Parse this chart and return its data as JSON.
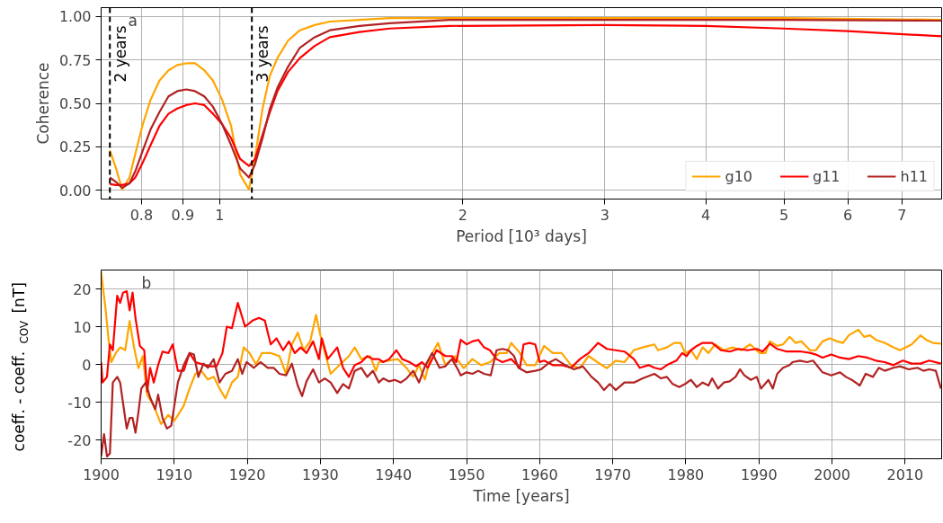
{
  "chart_data": [
    {
      "type": "line",
      "xlabel": "Period [10³ days]",
      "ylabel": "Coherence",
      "log": "x",
      "grid": true,
      "legend": "bottom right",
      "line_style": "solid",
      "xlim": [
        0.713,
        7.84
      ],
      "xticks": [
        0.8,
        0.9,
        1,
        2,
        3,
        4,
        5,
        6,
        7
      ],
      "ylim": [
        -0.05,
        1.05
      ],
      "yticks": [
        {
          "value": 0,
          "label": "0.00"
        },
        {
          "value": 0.25,
          "label": "0.25"
        },
        {
          "value": 0.5,
          "label": "0.50"
        },
        {
          "value": 0.75,
          "label": "0.75"
        },
        {
          "value": 1,
          "label": "1.00"
        }
      ],
      "ref_lines": [
        {
          "axis": "x",
          "value": 0.731,
          "label": "2 years",
          "color": "#000000",
          "line_style": "dashed"
        },
        {
          "axis": "x",
          "value": 1.096,
          "label": "3 years",
          "color": "#000000",
          "line_style": "dashed"
        }
      ],
      "annotations": [
        "a"
      ],
      "series": [
        {
          "name": "g10",
          "color": "#ffa500",
          "x": [
            0.731,
            0.744,
            0.757,
            0.773,
            0.786,
            0.803,
            0.821,
            0.842,
            0.864,
            0.886,
            0.909,
            0.932,
            0.957,
            0.981,
            1.007,
            1.033,
            1.06,
            1.087,
            1.106,
            1.13,
            1.154,
            1.179,
            1.215,
            1.257,
            1.311,
            1.369,
            1.49,
            1.623,
            1.925,
            3,
            5,
            7.84
          ],
          "values": [
            0.23,
            0.126,
            0.005,
            0.074,
            0.21,
            0.38,
            0.52,
            0.63,
            0.69,
            0.72,
            0.73,
            0.73,
            0.69,
            0.63,
            0.52,
            0.37,
            0.09,
            0.005,
            0.19,
            0.47,
            0.66,
            0.76,
            0.86,
            0.92,
            0.95,
            0.97,
            0.98,
            0.99,
            0.99,
            0.99,
            0.99,
            0.98
          ]
        },
        {
          "name": "g11",
          "color": "#ff0000",
          "x": [
            0.731,
            0.744,
            0.757,
            0.773,
            0.786,
            0.803,
            0.821,
            0.842,
            0.864,
            0.886,
            0.909,
            0.932,
            0.957,
            0.981,
            1.007,
            1.033,
            1.06,
            1.087,
            1.106,
            1.13,
            1.154,
            1.179,
            1.215,
            1.257,
            1.311,
            1.369,
            1.49,
            1.623,
            1.925,
            3,
            4,
            5,
            6,
            7.84
          ],
          "values": [
            0.036,
            0.031,
            0.031,
            0.04,
            0.074,
            0.16,
            0.26,
            0.37,
            0.44,
            0.47,
            0.49,
            0.5,
            0.49,
            0.44,
            0.38,
            0.3,
            0.18,
            0.14,
            0.18,
            0.32,
            0.45,
            0.57,
            0.68,
            0.76,
            0.83,
            0.88,
            0.91,
            0.93,
            0.945,
            0.95,
            0.945,
            0.93,
            0.915,
            0.885
          ]
        },
        {
          "name": "h11",
          "color": "#b22222",
          "x": [
            0.731,
            0.744,
            0.757,
            0.773,
            0.786,
            0.803,
            0.821,
            0.842,
            0.864,
            0.886,
            0.909,
            0.932,
            0.957,
            0.981,
            1.007,
            1.033,
            1.06,
            1.087,
            1.106,
            1.13,
            1.154,
            1.179,
            1.215,
            1.257,
            1.311,
            1.369,
            1.49,
            1.623,
            1.925,
            3,
            5,
            7.84
          ],
          "values": [
            0.074,
            0.048,
            0.014,
            0.04,
            0.11,
            0.23,
            0.35,
            0.45,
            0.54,
            0.57,
            0.58,
            0.57,
            0.54,
            0.48,
            0.38,
            0.26,
            0.126,
            0.074,
            0.15,
            0.3,
            0.47,
            0.59,
            0.71,
            0.82,
            0.88,
            0.92,
            0.945,
            0.96,
            0.98,
            0.98,
            0.98,
            0.975
          ]
        }
      ]
    },
    {
      "type": "line",
      "xlabel": "Time [years]",
      "ylabel": "coeff. - coeff.$_{COV}$ [nT]",
      "grid": true,
      "line_style": "solid",
      "xlim": [
        1900,
        2015
      ],
      "xticks": [
        1900,
        1910,
        1920,
        1930,
        1940,
        1950,
        1960,
        1970,
        1980,
        1990,
        2000,
        2010
      ],
      "ylim": [
        -25,
        25
      ],
      "yticks": [
        -20,
        -10,
        0,
        10,
        20
      ],
      "annotations": [
        "b"
      ],
      "series": [
        {
          "color": "#ffa500",
          "x": [
            1900,
            1900.6,
            1901,
            1901.4,
            1902,
            1902.6,
            1903.3,
            1903.9,
            1904.5,
            1905.1,
            1905.7,
            1906.3,
            1907.2,
            1908.2,
            1909.2,
            1910,
            1911.3,
            1912.1,
            1912.9,
            1913.7,
            1914.6,
            1915.4,
            1916.2,
            1917,
            1917.9,
            1918.7,
            1919.5,
            1920.3,
            1921.2,
            1922,
            1923.2,
            1924.4,
            1925.3,
            1926.1,
            1926.9,
            1927.7,
            1928.6,
            1929.4,
            1930,
            1931.4,
            1932.7,
            1933.9,
            1934.7,
            1935.6,
            1936.8,
            1937.6,
            1938,
            1940.6,
            1941.8,
            1942.7,
            1943.5,
            1944.3,
            1945.1,
            1946.1,
            1947.1,
            1948.4,
            1949.6,
            1950.8,
            1952,
            1953.2,
            1954.5,
            1955.5,
            1956.1,
            1957.3,
            1958.2,
            1959.4,
            1960.6,
            1961.8,
            1963,
            1964.3,
            1965.5,
            1966.7,
            1967.9,
            1969.2,
            1970.4,
            1971.6,
            1972.9,
            1974.1,
            1975.7,
            1976.2,
            1977.4,
            1978.4,
            1979.3,
            1979.9,
            1980.7,
            1981.5,
            1982.3,
            1983.1,
            1984,
            1985.2,
            1986.4,
            1987.6,
            1988.8,
            1990.1,
            1990.9,
            1991.5,
            1992.5,
            1993.3,
            1994.2,
            1995,
            1995.8,
            1997,
            1997.8,
            1998.7,
            1999.7,
            2000.7,
            2001.5,
            2002.3,
            2003.6,
            2004.4,
            2005.2,
            2006,
            2007.2,
            2008.4,
            2009.3,
            2010.1,
            2010.9,
            2012.1,
            2012.9,
            2013.8,
            2014.9
          ],
          "values": [
            24.5,
            14.8,
            6.8,
            0.6,
            3,
            4.5,
            3.8,
            11.5,
            4.5,
            -1,
            2.2,
            -8,
            -11,
            -15.8,
            -13.4,
            -15,
            -11,
            -6.4,
            -2.5,
            -1.7,
            -4,
            -3.3,
            -6.4,
            -9,
            -4.8,
            -3.3,
            4.5,
            3,
            0,
            3,
            3,
            2.2,
            -2.5,
            5.3,
            8.4,
            3.8,
            6,
            13.1,
            7.7,
            -2.5,
            0,
            2.2,
            4.5,
            1.4,
            2.2,
            -1.7,
            0.6,
            1.4,
            -1,
            -3.3,
            -0.2,
            -4,
            2.2,
            5.7,
            -0.2,
            2.2,
            -1,
            1.4,
            -0.2,
            0.6,
            3,
            3,
            5.7,
            3,
            -0.2,
            -0.2,
            4.9,
            3,
            3,
            -0.2,
            -1,
            2.2,
            0.6,
            -1,
            1,
            0.6,
            3.8,
            4.5,
            5.3,
            3.75,
            4.5,
            5.7,
            5.7,
            3,
            3.75,
            1.4,
            4.5,
            3,
            5.3,
            3.75,
            4.5,
            3.75,
            5.3,
            3,
            3,
            6.1,
            4.9,
            5.3,
            7.3,
            5.7,
            6.1,
            3.75,
            3.75,
            6.1,
            6.9,
            6.1,
            5.7,
            7.7,
            9.2,
            7.3,
            7.7,
            6.5,
            5.7,
            4.5,
            3.75,
            4.5,
            5.3,
            7.7,
            6.5,
            5.7,
            5.5
          ]
        },
        {
          "color": "#ff0000",
          "x": [
            1900,
            1900.2,
            1900.8,
            1901.2,
            1901.6,
            1902.2,
            1902.6,
            1903,
            1903.5,
            1903.9,
            1904.3,
            1904.7,
            1905.3,
            1905.9,
            1906.3,
            1906.7,
            1907.2,
            1907.8,
            1908.4,
            1909.2,
            1909.8,
            1910.5,
            1911.3,
            1912.1,
            1912.9,
            1914.2,
            1915,
            1915.8,
            1916.6,
            1917.2,
            1917.9,
            1918.7,
            1919.7,
            1920.7,
            1921.6,
            1922.4,
            1923.2,
            1924,
            1924.9,
            1925.7,
            1926.5,
            1927.3,
            1928.1,
            1929,
            1929.8,
            1930.2,
            1931,
            1932.3,
            1933.1,
            1933.9,
            1934.7,
            1935.6,
            1936.4,
            1937.2,
            1938,
            1938.6,
            1939.4,
            1940.4,
            1941.2,
            1942.2,
            1943.1,
            1943.9,
            1944.7,
            1945.9,
            1947.1,
            1948,
            1948.6,
            1949.2,
            1950,
            1950.8,
            1951.6,
            1952.4,
            1953.2,
            1954.1,
            1954.9,
            1956.1,
            1957.3,
            1957.8,
            1958.6,
            1959.4,
            1960,
            1960.6,
            1961.8,
            1963.1,
            1964.3,
            1965.5,
            1966.7,
            1968,
            1969.2,
            1970.4,
            1971.6,
            1972.9,
            1973.7,
            1974.9,
            1975.7,
            1976.6,
            1977.4,
            1978.7,
            1979.5,
            1980.1,
            1980.7,
            1981.5,
            1982.3,
            1983.6,
            1984.8,
            1986,
            1987.2,
            1988.4,
            1989.7,
            1990.5,
            1991.5,
            1992.5,
            1993.8,
            1994.6,
            1995.8,
            1997.1,
            1997.8,
            1998.7,
            1999.9,
            2001.1,
            2002.3,
            2003.6,
            2004.8,
            2006,
            2007.2,
            2008.4,
            2009.7,
            2010.9,
            2012.1,
            2013.3,
            2014.9
          ],
          "values": [
            0.6,
            -4.8,
            -3.3,
            5.3,
            3.75,
            18.2,
            16.3,
            19,
            19.4,
            14.3,
            19,
            12.3,
            4.9,
            3.75,
            -7.2,
            -0.9,
            -4.8,
            -0.2,
            3.4,
            3,
            5.3,
            -1.7,
            -1.7,
            3,
            0.6,
            -0.2,
            -0.5,
            -0.5,
            3,
            10,
            9.6,
            16.3,
            10,
            11.6,
            12.3,
            11.6,
            5.3,
            6.9,
            3.75,
            6.1,
            3,
            4.5,
            3,
            6.1,
            1.4,
            6.9,
            1.4,
            4.5,
            -0.9,
            -3.3,
            -0.2,
            0.6,
            2.2,
            1.4,
            1.4,
            0.6,
            1.4,
            3.75,
            1.4,
            0.6,
            -0.5,
            0.6,
            -0.9,
            3.75,
            2.2,
            2.2,
            0.6,
            6.5,
            5.3,
            6.1,
            6.5,
            4.5,
            3.75,
            1.4,
            0.6,
            1.4,
            -0.9,
            5.3,
            5.7,
            5.3,
            0.6,
            1,
            -0.2,
            -0.2,
            -0.9,
            1.4,
            3,
            5.7,
            4.1,
            3.75,
            3.4,
            1.4,
            -0.9,
            -0.2,
            -0.9,
            -1.3,
            -0.2,
            1,
            3,
            2.2,
            3.75,
            4.9,
            5.7,
            5.7,
            3.75,
            3.4,
            4.1,
            3.75,
            4.1,
            3.4,
            5.5,
            4.1,
            3.4,
            3.4,
            3.4,
            3,
            2.6,
            1.8,
            2.6,
            1.8,
            1.4,
            2.2,
            1.8,
            1,
            0.6,
            -0.2,
            1,
            0.2,
            0.2,
            1,
            0.2
          ]
        },
        {
          "color": "#b22222",
          "x": [
            1900,
            1900.4,
            1900.8,
            1901.2,
            1901.6,
            1902.2,
            1902.6,
            1903,
            1903.5,
            1903.9,
            1904.3,
            1904.7,
            1905.1,
            1905.5,
            1906.1,
            1906.7,
            1907.4,
            1907.8,
            1908.4,
            1909,
            1909.6,
            1910.5,
            1911.3,
            1912.1,
            1912.7,
            1913.3,
            1914,
            1914.6,
            1915.4,
            1916.2,
            1917,
            1917.9,
            1918.7,
            1919.3,
            1919.9,
            1920.9,
            1921.8,
            1922.8,
            1923.6,
            1924.4,
            1925.3,
            1926.1,
            1926.9,
            1927.5,
            1928.1,
            1929,
            1929.8,
            1930.6,
            1931.4,
            1932.3,
            1933.1,
            1933.9,
            1934.7,
            1935.6,
            1936.4,
            1937.2,
            1938,
            1938.6,
            1939.4,
            1940.2,
            1941,
            1941.8,
            1942.7,
            1943.5,
            1944.3,
            1945.3,
            1946.3,
            1947.1,
            1948,
            1948.8,
            1949.2,
            1950,
            1950.8,
            1951.6,
            1952.4,
            1953.3,
            1954.1,
            1954.9,
            1955.7,
            1956.5,
            1957.1,
            1958.2,
            1959.4,
            1960.2,
            1961.4,
            1962.2,
            1963.5,
            1964.7,
            1965.9,
            1967.1,
            1968,
            1968.8,
            1969.6,
            1970.4,
            1971.6,
            1972.9,
            1974.1,
            1975.7,
            1976.6,
            1977.4,
            1978.2,
            1979.1,
            1979.9,
            1980.7,
            1981.5,
            1982.3,
            1983.1,
            1983.6,
            1984.4,
            1985.2,
            1986,
            1986.8,
            1987.4,
            1988,
            1988.9,
            1989.7,
            1990.3,
            1991.3,
            1991.9,
            1992.5,
            1993.3,
            1994.2,
            1994.6,
            1995.6,
            1996.6,
            1997.4,
            1998.7,
            1999.9,
            2001.1,
            2001.9,
            2002.7,
            2003.8,
            2004.6,
            2005.6,
            2006.4,
            2007.2,
            2008.4,
            2009.3,
            2010.5,
            2011.7,
            2012.5,
            2013.3,
            2014.2,
            2014.9
          ],
          "values": [
            -24.4,
            -18.5,
            -24.4,
            -23.6,
            -4.8,
            -3.3,
            -4.8,
            -10.3,
            -17,
            -14.2,
            -14.2,
            -18.1,
            -12.7,
            -6.4,
            -4.8,
            -8.75,
            -11.9,
            -8,
            -14.2,
            -17,
            -16.2,
            -4.8,
            -0.2,
            3,
            2.6,
            -3.3,
            0.2,
            -0.9,
            1.4,
            -4.8,
            -2.5,
            -1.7,
            1.4,
            -2.5,
            0.6,
            -0.9,
            0.6,
            -0.9,
            -0.9,
            -2.5,
            -2.9,
            0.2,
            -5.6,
            -8.4,
            -4.5,
            -1.3,
            -4.8,
            -3.7,
            -4.8,
            -7.6,
            -5.2,
            -6.4,
            -1.7,
            -0.9,
            -3.3,
            -1.7,
            -4.8,
            -3.7,
            -4.5,
            -4.1,
            -4.8,
            -3.7,
            -1.7,
            -4.8,
            -0.5,
            3,
            -0.9,
            -0.5,
            1.4,
            -1.3,
            -2.9,
            -2.1,
            -2.5,
            -1.7,
            -2.5,
            -2.9,
            3.75,
            4.1,
            3.75,
            2.2,
            -0.9,
            -2.1,
            -1.7,
            -1.3,
            0.6,
            1.4,
            -0.2,
            -1.3,
            -0.5,
            -3.3,
            -4.8,
            -6.8,
            -5.2,
            -6.8,
            -4.8,
            -4.8,
            -3.7,
            -2.5,
            -3.7,
            -3.3,
            -5.2,
            -6,
            -5.2,
            -4.1,
            -6,
            -4.8,
            -5.6,
            -3.7,
            -6.4,
            -4.8,
            -4.5,
            -3.3,
            -1.3,
            -2.9,
            -4.1,
            -3.3,
            -6.4,
            -4.1,
            -6.4,
            -2.5,
            -0.9,
            -0.2,
            0.6,
            1,
            0.6,
            1,
            -2.1,
            -2.9,
            -2.1,
            -3.3,
            -4.1,
            -5.6,
            -2.5,
            -3.3,
            -0.9,
            -1.7,
            -0.9,
            -0.5,
            -1.3,
            -0.9,
            -1.7,
            -1.3,
            -1.7,
            -6.4
          ]
        }
      ]
    }
  ]
}
